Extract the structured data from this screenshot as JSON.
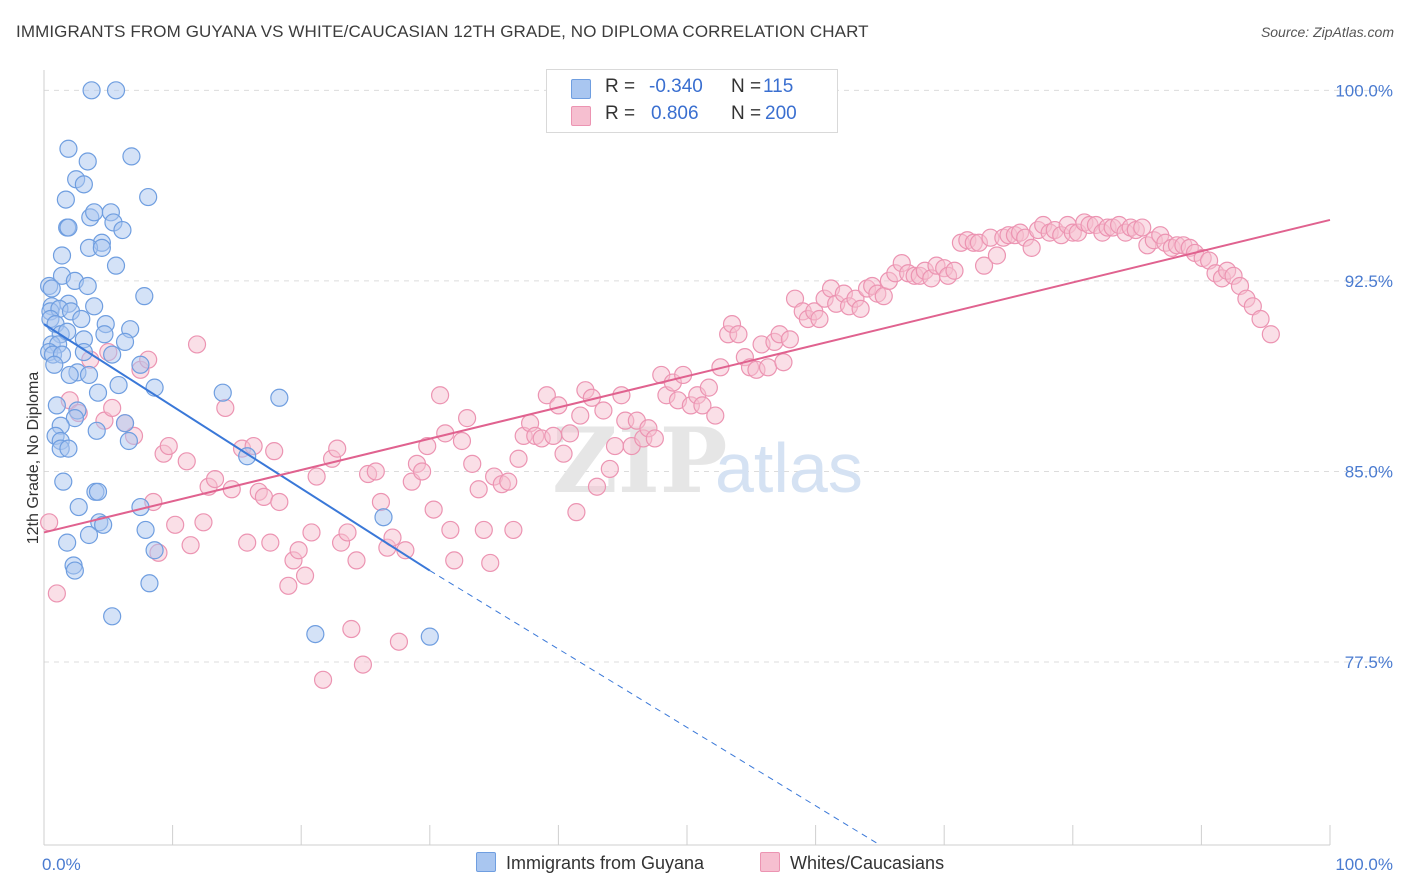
{
  "title": "IMMIGRANTS FROM GUYANA VS WHITE/CAUCASIAN 12TH GRADE, NO DIPLOMA CORRELATION CHART",
  "source": "Source: ZipAtlas.com",
  "watermark": {
    "part1": "ZIP",
    "part2": "atlas"
  },
  "legend_top": {
    "rows": [
      {
        "r_label": "R =",
        "r_value": "-0.340",
        "n_label": "N =",
        "n_value": "115"
      },
      {
        "r_label": "R =",
        "r_value": "0.806",
        "n_label": "N =",
        "n_value": "200"
      }
    ]
  },
  "legend_bottom": {
    "series1": "Immigrants from Guyana",
    "series2": "Whites/Caucasians"
  },
  "colors": {
    "blue_fill": "#a9c6f0",
    "blue_stroke": "#6f9ee0",
    "blue_line": "#3a78d8",
    "pink_fill": "#f6bfd0",
    "pink_stroke": "#ec94b2",
    "pink_line": "#e0628f",
    "grid": "#dcdcdc",
    "tick_text": "#4a7bd0"
  },
  "chart_data": {
    "type": "scatter",
    "title": "IMMIGRANTS FROM GUYANA VS WHITE/CAUCASIAN 12TH GRADE, NO DIPLOMA CORRELATION CHART",
    "xlabel": "",
    "ylabel": "12th Grade, No Diploma",
    "xlim": [
      0,
      100
    ],
    "ylim": [
      70.3,
      100.8
    ],
    "x_tick_labels": [
      "0.0%",
      "100.0%"
    ],
    "y_ticks": [
      77.5,
      85.0,
      92.5,
      100.0
    ],
    "y_tick_labels": [
      "77.5%",
      "85.0%",
      "92.5%",
      "100.0%"
    ],
    "grid": true,
    "legend_position": "top-center and bottom",
    "series": [
      {
        "name": "Immigrants from Guyana",
        "R": -0.34,
        "N": 115,
        "trend": {
          "x": [
            0,
            30
          ],
          "y": [
            90.8,
            81.1
          ],
          "dashed_to": {
            "x": 65,
            "y": 70.3
          }
        },
        "points": [
          [
            3.7,
            100
          ],
          [
            5.6,
            100
          ],
          [
            1.9,
            97.7
          ],
          [
            6.8,
            97.4
          ],
          [
            3.4,
            97.2
          ],
          [
            2.5,
            96.5
          ],
          [
            3.1,
            96.3
          ],
          [
            1.7,
            95.7
          ],
          [
            8.1,
            95.8
          ],
          [
            3.6,
            95.0
          ],
          [
            3.9,
            95.2
          ],
          [
            5.2,
            95.2
          ],
          [
            5.4,
            94.8
          ],
          [
            1.8,
            94.6
          ],
          [
            1.9,
            94.6
          ],
          [
            6.1,
            94.5
          ],
          [
            4.5,
            94.0
          ],
          [
            3.5,
            93.8
          ],
          [
            4.5,
            93.8
          ],
          [
            1.4,
            93.5
          ],
          [
            5.6,
            93.1
          ],
          [
            1.4,
            92.7
          ],
          [
            2.4,
            92.5
          ],
          [
            0.4,
            92.3
          ],
          [
            0.6,
            92.2
          ],
          [
            3.4,
            92.3
          ],
          [
            7.8,
            91.9
          ],
          [
            0.6,
            91.5
          ],
          [
            1.9,
            91.6
          ],
          [
            3.9,
            91.5
          ],
          [
            0.5,
            91.3
          ],
          [
            1.2,
            91.4
          ],
          [
            2.1,
            91.3
          ],
          [
            2.9,
            91.0
          ],
          [
            0.5,
            91.0
          ],
          [
            0.9,
            90.8
          ],
          [
            4.8,
            90.8
          ],
          [
            6.7,
            90.6
          ],
          [
            1.3,
            90.4
          ],
          [
            4.7,
            90.4
          ],
          [
            1.8,
            90.5
          ],
          [
            3.1,
            90.2
          ],
          [
            6.3,
            90.1
          ],
          [
            0.6,
            90.0
          ],
          [
            1.1,
            90.0
          ],
          [
            0.4,
            89.7
          ],
          [
            0.7,
            89.6
          ],
          [
            1.4,
            89.6
          ],
          [
            3.1,
            89.7
          ],
          [
            5.3,
            89.6
          ],
          [
            0.8,
            89.2
          ],
          [
            2.6,
            88.9
          ],
          [
            7.5,
            89.2
          ],
          [
            2.0,
            88.8
          ],
          [
            3.5,
            88.8
          ],
          [
            5.8,
            88.4
          ],
          [
            8.6,
            88.3
          ],
          [
            4.2,
            88.1
          ],
          [
            13.9,
            88.1
          ],
          [
            18.3,
            87.9
          ],
          [
            1.0,
            87.6
          ],
          [
            2.6,
            87.4
          ],
          [
            2.4,
            87.1
          ],
          [
            1.3,
            86.8
          ],
          [
            4.1,
            86.6
          ],
          [
            6.3,
            86.9
          ],
          [
            0.9,
            86.4
          ],
          [
            1.3,
            86.2
          ],
          [
            6.6,
            86.2
          ],
          [
            1.3,
            85.9
          ],
          [
            1.9,
            85.9
          ],
          [
            15.8,
            85.6
          ],
          [
            1.5,
            84.6
          ],
          [
            4.0,
            84.2
          ],
          [
            4.2,
            84.2
          ],
          [
            2.7,
            83.6
          ],
          [
            7.5,
            83.6
          ],
          [
            4.3,
            83.0
          ],
          [
            4.6,
            82.9
          ],
          [
            26.4,
            83.2
          ],
          [
            7.9,
            82.7
          ],
          [
            3.5,
            82.5
          ],
          [
            1.8,
            82.2
          ],
          [
            8.6,
            81.9
          ],
          [
            2.3,
            81.3
          ],
          [
            2.4,
            81.1
          ],
          [
            8.2,
            80.6
          ],
          [
            5.3,
            79.3
          ],
          [
            21.1,
            78.6
          ],
          [
            30.0,
            78.5
          ]
        ]
      },
      {
        "name": "Whites/Caucasians",
        "R": 0.806,
        "N": 200,
        "trend": {
          "x": [
            0,
            100
          ],
          "y": [
            82.6,
            94.9
          ]
        },
        "points": [
          [
            0.4,
            83.0
          ],
          [
            1.0,
            80.2
          ],
          [
            2.0,
            87.8
          ],
          [
            2.7,
            87.3
          ],
          [
            3.6,
            89.4
          ],
          [
            4.7,
            87.0
          ],
          [
            5.0,
            89.7
          ],
          [
            5.3,
            87.5
          ],
          [
            6.3,
            86.9
          ],
          [
            7.0,
            86.4
          ],
          [
            7.5,
            89.0
          ],
          [
            8.1,
            89.4
          ],
          [
            8.5,
            83.8
          ],
          [
            8.9,
            81.8
          ],
          [
            9.3,
            85.7
          ],
          [
            9.7,
            86.0
          ],
          [
            10.2,
            82.9
          ],
          [
            11.1,
            85.4
          ],
          [
            11.4,
            82.1
          ],
          [
            11.9,
            90.0
          ],
          [
            12.4,
            83.0
          ],
          [
            12.8,
            84.4
          ],
          [
            13.3,
            84.7
          ],
          [
            14.1,
            87.5
          ],
          [
            14.6,
            84.3
          ],
          [
            15.4,
            85.9
          ],
          [
            15.8,
            82.2
          ],
          [
            16.3,
            86.0
          ],
          [
            16.7,
            84.2
          ],
          [
            17.1,
            84.0
          ],
          [
            17.6,
            82.2
          ],
          [
            17.9,
            85.8
          ],
          [
            18.3,
            83.8
          ],
          [
            19.0,
            80.5
          ],
          [
            19.4,
            81.5
          ],
          [
            19.8,
            81.9
          ],
          [
            20.3,
            80.9
          ],
          [
            20.8,
            82.6
          ],
          [
            21.2,
            84.8
          ],
          [
            21.7,
            76.8
          ],
          [
            22.4,
            85.5
          ],
          [
            22.8,
            85.9
          ],
          [
            23.1,
            82.2
          ],
          [
            23.6,
            82.6
          ],
          [
            23.9,
            78.8
          ],
          [
            24.3,
            81.5
          ],
          [
            24.8,
            77.4
          ],
          [
            25.2,
            84.9
          ],
          [
            25.8,
            85.0
          ],
          [
            26.2,
            83.8
          ],
          [
            26.7,
            82.0
          ],
          [
            27.1,
            82.4
          ],
          [
            27.6,
            78.3
          ],
          [
            28.1,
            81.9
          ],
          [
            28.6,
            84.6
          ],
          [
            29.0,
            85.3
          ],
          [
            29.4,
            85.0
          ],
          [
            29.8,
            86.0
          ],
          [
            30.3,
            83.5
          ],
          [
            30.8,
            88.0
          ],
          [
            31.2,
            86.5
          ],
          [
            31.6,
            82.7
          ],
          [
            31.9,
            81.5
          ],
          [
            32.5,
            86.2
          ],
          [
            32.9,
            87.1
          ],
          [
            33.3,
            85.3
          ],
          [
            33.8,
            84.3
          ],
          [
            34.2,
            82.7
          ],
          [
            34.7,
            81.4
          ],
          [
            35.0,
            84.8
          ],
          [
            35.6,
            84.5
          ],
          [
            36.1,
            84.6
          ],
          [
            36.5,
            82.7
          ],
          [
            36.9,
            85.5
          ],
          [
            37.3,
            86.4
          ],
          [
            37.8,
            86.9
          ],
          [
            38.2,
            86.4
          ],
          [
            38.7,
            86.3
          ],
          [
            39.1,
            88.0
          ],
          [
            39.6,
            86.4
          ],
          [
            40.0,
            87.6
          ],
          [
            40.4,
            85.7
          ],
          [
            40.9,
            86.5
          ],
          [
            41.4,
            83.4
          ],
          [
            41.7,
            87.2
          ],
          [
            42.1,
            88.2
          ],
          [
            42.6,
            87.9
          ],
          [
            43.0,
            84.4
          ],
          [
            43.5,
            87.4
          ],
          [
            44.0,
            85.1
          ],
          [
            44.4,
            86.0
          ],
          [
            44.9,
            88.0
          ],
          [
            45.2,
            87.0
          ],
          [
            45.7,
            86.0
          ],
          [
            46.1,
            87.0
          ],
          [
            46.6,
            86.3
          ],
          [
            47.0,
            86.7
          ],
          [
            47.5,
            86.3
          ],
          [
            48.0,
            88.8
          ],
          [
            48.4,
            88.0
          ],
          [
            48.9,
            88.5
          ],
          [
            49.3,
            87.8
          ],
          [
            49.7,
            88.8
          ],
          [
            50.3,
            87.6
          ],
          [
            50.8,
            88.0
          ],
          [
            51.2,
            87.6
          ],
          [
            51.7,
            88.3
          ],
          [
            52.2,
            87.2
          ],
          [
            52.6,
            89.1
          ],
          [
            53.2,
            90.4
          ],
          [
            53.5,
            90.8
          ],
          [
            54.0,
            90.4
          ],
          [
            54.5,
            89.5
          ],
          [
            54.9,
            89.1
          ],
          [
            55.4,
            89.0
          ],
          [
            55.8,
            90.0
          ],
          [
            56.3,
            89.1
          ],
          [
            56.8,
            90.1
          ],
          [
            57.2,
            90.4
          ],
          [
            57.5,
            89.3
          ],
          [
            58.0,
            90.2
          ],
          [
            58.4,
            91.8
          ],
          [
            59.0,
            91.3
          ],
          [
            59.4,
            91.0
          ],
          [
            59.9,
            91.3
          ],
          [
            60.3,
            91.0
          ],
          [
            60.7,
            91.8
          ],
          [
            61.2,
            92.2
          ],
          [
            61.6,
            91.6
          ],
          [
            62.2,
            92.0
          ],
          [
            62.6,
            91.5
          ],
          [
            63.1,
            91.8
          ],
          [
            63.5,
            91.4
          ],
          [
            64.0,
            92.2
          ],
          [
            64.4,
            92.3
          ],
          [
            64.8,
            92.0
          ],
          [
            65.3,
            91.9
          ],
          [
            65.7,
            92.5
          ],
          [
            66.2,
            92.8
          ],
          [
            66.7,
            93.2
          ],
          [
            67.2,
            92.8
          ],
          [
            67.7,
            92.7
          ],
          [
            68.1,
            92.7
          ],
          [
            68.5,
            92.9
          ],
          [
            69.0,
            92.6
          ],
          [
            69.4,
            93.1
          ],
          [
            70.0,
            93.0
          ],
          [
            70.3,
            92.7
          ],
          [
            70.8,
            92.9
          ],
          [
            71.3,
            94.0
          ],
          [
            71.8,
            94.1
          ],
          [
            72.3,
            94.0
          ],
          [
            72.7,
            94.0
          ],
          [
            73.1,
            93.1
          ],
          [
            73.6,
            94.2
          ],
          [
            74.1,
            93.5
          ],
          [
            74.6,
            94.2
          ],
          [
            75.0,
            94.3
          ],
          [
            75.5,
            94.3
          ],
          [
            75.9,
            94.4
          ],
          [
            76.3,
            94.2
          ],
          [
            76.8,
            93.8
          ],
          [
            77.3,
            94.5
          ],
          [
            77.7,
            94.7
          ],
          [
            78.2,
            94.4
          ],
          [
            78.6,
            94.5
          ],
          [
            79.1,
            94.3
          ],
          [
            79.6,
            94.7
          ],
          [
            80.0,
            94.4
          ],
          [
            80.4,
            94.4
          ],
          [
            80.9,
            94.8
          ],
          [
            81.3,
            94.7
          ],
          [
            81.8,
            94.7
          ],
          [
            82.3,
            94.4
          ],
          [
            82.7,
            94.6
          ],
          [
            83.1,
            94.6
          ],
          [
            83.6,
            94.7
          ],
          [
            84.1,
            94.4
          ],
          [
            84.5,
            94.6
          ],
          [
            84.9,
            94.5
          ],
          [
            85.4,
            94.6
          ],
          [
            85.8,
            93.9
          ],
          [
            86.3,
            94.1
          ],
          [
            86.8,
            94.3
          ],
          [
            87.2,
            94.0
          ],
          [
            87.7,
            93.8
          ],
          [
            88.1,
            93.9
          ],
          [
            88.6,
            93.9
          ],
          [
            89.1,
            93.8
          ],
          [
            89.5,
            93.6
          ],
          [
            90.1,
            93.4
          ],
          [
            90.6,
            93.3
          ],
          [
            91.1,
            92.8
          ],
          [
            91.6,
            92.6
          ],
          [
            92.0,
            92.9
          ],
          [
            92.5,
            92.7
          ],
          [
            93.0,
            92.3
          ],
          [
            93.5,
            91.8
          ],
          [
            94.0,
            91.5
          ],
          [
            94.6,
            91.0
          ],
          [
            95.4,
            90.4
          ]
        ]
      }
    ]
  }
}
